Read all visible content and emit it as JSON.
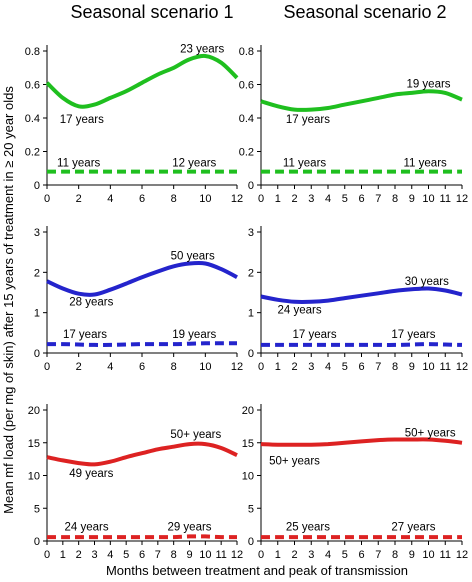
{
  "column_titles": [
    "Seasonal scenario 1",
    "Seasonal scenario 2"
  ],
  "ylabel": "Mean mf load (per mg of skin) after 15 years of treatment in ≥ 20 year olds",
  "xlabel": "Months between treatment and peak of transmission",
  "chart_data": [
    {
      "type": "line",
      "row": 0,
      "col": 0,
      "color": "#1fbf1f",
      "x": [
        0,
        1,
        2,
        3,
        4,
        5,
        6,
        7,
        8,
        9,
        10,
        11,
        12
      ],
      "ylim": [
        0,
        0.8
      ],
      "yticks": [
        "0",
        "0.2",
        "0.4",
        "0.6",
        "0.8"
      ],
      "xlim": [
        0,
        12
      ],
      "xticks": [
        "0",
        "2",
        "4",
        "6",
        "8",
        "10",
        "12"
      ],
      "series": [
        {
          "style": "solid",
          "values": [
            0.61,
            0.52,
            0.47,
            0.48,
            0.52,
            0.56,
            0.61,
            0.66,
            0.7,
            0.75,
            0.77,
            0.73,
            0.64
          ]
        },
        {
          "style": "dashed",
          "values": [
            0.08,
            0.08,
            0.08,
            0.08,
            0.08,
            0.08,
            0.08,
            0.08,
            0.08,
            0.08,
            0.08,
            0.08,
            0.08
          ]
        }
      ],
      "annotations": [
        {
          "text": "17 years",
          "x": 2.2,
          "y": 0.395
        },
        {
          "text": "23 years",
          "x": 9.8,
          "y": 0.815
        },
        {
          "text": "11 years",
          "x": 2.0,
          "y": 0.135
        },
        {
          "text": "12 years",
          "x": 9.3,
          "y": 0.135
        }
      ]
    },
    {
      "type": "line",
      "row": 0,
      "col": 1,
      "color": "#1fbf1f",
      "x": [
        0,
        1,
        2,
        3,
        4,
        5,
        6,
        7,
        8,
        9,
        10,
        11,
        12
      ],
      "ylim": [
        0,
        0.8
      ],
      "yticks": [
        "0",
        "0.2",
        "0.4",
        "0.6",
        "0.8"
      ],
      "xlim": [
        0,
        12
      ],
      "xticks": [
        "0",
        "1",
        "2",
        "3",
        "4",
        "5",
        "6",
        "7",
        "8",
        "9",
        "10",
        "11",
        "12"
      ],
      "series": [
        {
          "style": "solid",
          "values": [
            0.5,
            0.47,
            0.45,
            0.45,
            0.46,
            0.48,
            0.5,
            0.52,
            0.54,
            0.55,
            0.56,
            0.55,
            0.51
          ]
        },
        {
          "style": "dashed",
          "values": [
            0.08,
            0.08,
            0.08,
            0.08,
            0.08,
            0.08,
            0.08,
            0.08,
            0.08,
            0.08,
            0.08,
            0.08,
            0.08
          ]
        }
      ],
      "annotations": [
        {
          "text": "17 years",
          "x": 2.8,
          "y": 0.395
        },
        {
          "text": "19 years",
          "x": 10.0,
          "y": 0.605
        },
        {
          "text": "11 years",
          "x": 2.6,
          "y": 0.135
        },
        {
          "text": "11 years",
          "x": 9.8,
          "y": 0.135
        }
      ]
    },
    {
      "type": "line",
      "row": 1,
      "col": 0,
      "color": "#2424cc",
      "x": [
        0,
        1,
        2,
        3,
        4,
        5,
        6,
        7,
        8,
        9,
        10,
        11,
        12
      ],
      "ylim": [
        0,
        3
      ],
      "yticks": [
        "0",
        "1",
        "2",
        "3"
      ],
      "xlim": [
        0,
        12
      ],
      "xticks": [
        "0",
        "2",
        "4",
        "6",
        "8",
        "10",
        "12"
      ],
      "series": [
        {
          "style": "solid",
          "values": [
            1.78,
            1.6,
            1.47,
            1.45,
            1.57,
            1.72,
            1.88,
            2.02,
            2.15,
            2.22,
            2.22,
            2.08,
            1.88
          ]
        },
        {
          "style": "dashed",
          "values": [
            0.22,
            0.22,
            0.21,
            0.2,
            0.2,
            0.21,
            0.22,
            0.22,
            0.22,
            0.23,
            0.24,
            0.24,
            0.24
          ]
        }
      ],
      "annotations": [
        {
          "text": "28 years",
          "x": 2.8,
          "y": 1.28
        },
        {
          "text": "50 years",
          "x": 9.2,
          "y": 2.42
        },
        {
          "text": "17 years",
          "x": 2.4,
          "y": 0.47
        },
        {
          "text": "19 years",
          "x": 9.3,
          "y": 0.47
        }
      ]
    },
    {
      "type": "line",
      "row": 1,
      "col": 1,
      "color": "#2424cc",
      "x": [
        0,
        1,
        2,
        3,
        4,
        5,
        6,
        7,
        8,
        9,
        10,
        11,
        12
      ],
      "ylim": [
        0,
        3
      ],
      "yticks": [
        "0",
        "1",
        "2",
        "3"
      ],
      "xlim": [
        0,
        12
      ],
      "xticks": [
        "0",
        "1",
        "2",
        "3",
        "4",
        "5",
        "6",
        "7",
        "8",
        "9",
        "10",
        "11",
        "12"
      ],
      "series": [
        {
          "style": "solid",
          "values": [
            1.4,
            1.32,
            1.27,
            1.27,
            1.3,
            1.36,
            1.42,
            1.48,
            1.54,
            1.58,
            1.6,
            1.55,
            1.45
          ]
        },
        {
          "style": "dashed",
          "values": [
            0.2,
            0.2,
            0.2,
            0.2,
            0.2,
            0.2,
            0.2,
            0.2,
            0.2,
            0.21,
            0.22,
            0.21,
            0.2
          ]
        }
      ],
      "annotations": [
        {
          "text": "24 years",
          "x": 2.3,
          "y": 1.08
        },
        {
          "text": "30 years",
          "x": 9.9,
          "y": 1.79
        },
        {
          "text": "17 years",
          "x": 3.2,
          "y": 0.47
        },
        {
          "text": "17 years",
          "x": 9.1,
          "y": 0.47
        }
      ]
    },
    {
      "type": "line",
      "row": 2,
      "col": 0,
      "color": "#dd2222",
      "x": [
        0,
        1,
        2,
        3,
        4,
        5,
        6,
        7,
        8,
        9,
        10,
        11,
        12
      ],
      "ylim": [
        0,
        20
      ],
      "yticks": [
        "0",
        "5",
        "10",
        "15",
        "20"
      ],
      "xlim": [
        0,
        12
      ],
      "xticks": [
        "0",
        "1",
        "2",
        "3",
        "4",
        "5",
        "6",
        "7",
        "8",
        "9",
        "10",
        "11",
        "12"
      ],
      "series": [
        {
          "style": "solid",
          "values": [
            12.8,
            12.3,
            11.9,
            11.7,
            12.1,
            12.8,
            13.4,
            14.0,
            14.4,
            14.8,
            14.8,
            14.2,
            13.1
          ]
        },
        {
          "style": "dashed",
          "values": [
            0.6,
            0.6,
            0.6,
            0.6,
            0.6,
            0.6,
            0.6,
            0.6,
            0.6,
            0.7,
            0.7,
            0.6,
            0.6
          ]
        }
      ],
      "annotations": [
        {
          "text": "49 years",
          "x": 2.8,
          "y": 10.4
        },
        {
          "text": "50+ years",
          "x": 9.4,
          "y": 16.3
        },
        {
          "text": "24 years",
          "x": 2.5,
          "y": 2.2
        },
        {
          "text": "29 years",
          "x": 9.0,
          "y": 2.2
        }
      ]
    },
    {
      "type": "line",
      "row": 2,
      "col": 1,
      "color": "#dd2222",
      "x": [
        0,
        1,
        2,
        3,
        4,
        5,
        6,
        7,
        8,
        9,
        10,
        11,
        12
      ],
      "ylim": [
        0,
        20
      ],
      "yticks": [
        "0",
        "5",
        "10",
        "15",
        "20"
      ],
      "xlim": [
        0,
        12
      ],
      "xticks": [
        "0",
        "1",
        "2",
        "3",
        "4",
        "5",
        "6",
        "7",
        "8",
        "9",
        "10",
        "11",
        "12"
      ],
      "series": [
        {
          "style": "solid",
          "values": [
            14.8,
            14.7,
            14.7,
            14.7,
            14.8,
            15.0,
            15.2,
            15.4,
            15.5,
            15.5,
            15.5,
            15.3,
            15.0
          ]
        },
        {
          "style": "dashed",
          "values": [
            0.6,
            0.6,
            0.6,
            0.6,
            0.6,
            0.6,
            0.6,
            0.6,
            0.6,
            0.6,
            0.6,
            0.6,
            0.6
          ]
        }
      ],
      "annotations": [
        {
          "text": "50+ years",
          "x": 2.0,
          "y": 12.3
        },
        {
          "text": "50+ years",
          "x": 10.1,
          "y": 16.6
        },
        {
          "text": "25 years",
          "x": 2.8,
          "y": 2.2
        },
        {
          "text": "27 years",
          "x": 9.1,
          "y": 2.2
        }
      ]
    }
  ]
}
